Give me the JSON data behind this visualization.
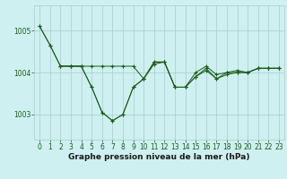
{
  "title": "Graphe pression niveau de la mer (hPa)",
  "background_color": "#cff0f0",
  "grid_color": "#aacccc",
  "line_color": "#1a5c1a",
  "ylim": [
    1002.4,
    1005.6
  ],
  "xlim": [
    -0.5,
    23.5
  ],
  "yticks": [
    1003,
    1004,
    1005
  ],
  "xticks": [
    0,
    1,
    2,
    3,
    4,
    5,
    6,
    7,
    8,
    9,
    10,
    11,
    12,
    13,
    14,
    15,
    16,
    17,
    18,
    19,
    20,
    21,
    22,
    23
  ],
  "series1_x": [
    0,
    1,
    2,
    3,
    4,
    5,
    6,
    7,
    8,
    9,
    10,
    11,
    12,
    13,
    14,
    15,
    16,
    17,
    18,
    19,
    20,
    21,
    22,
    23
  ],
  "series1": [
    1005.1,
    1004.65,
    1004.15,
    1004.15,
    1004.15,
    1004.15,
    1004.15,
    1004.15,
    1004.15,
    1004.15,
    1003.85,
    1004.25,
    1004.25,
    1003.65,
    1003.65,
    1004.0,
    1004.15,
    1003.95,
    1004.0,
    1004.0,
    1004.0,
    1004.1,
    1004.1,
    1004.1
  ],
  "series2_x": [
    0,
    1,
    2,
    3,
    4,
    5,
    6,
    7,
    8,
    9,
    10,
    11,
    12,
    13,
    14,
    15,
    16,
    17,
    18,
    19,
    20,
    21,
    22,
    23
  ],
  "series2": [
    1005.1,
    1004.65,
    1004.15,
    1004.15,
    1004.15,
    1003.65,
    1003.05,
    1002.85,
    1003.0,
    1003.65,
    1003.85,
    1004.2,
    1004.25,
    1003.65,
    1003.65,
    1003.9,
    1004.05,
    1003.85,
    1003.95,
    1004.0,
    1004.0,
    1004.1,
    1004.1,
    1004.1
  ],
  "series3_x": [
    2,
    3,
    4,
    5,
    6,
    7,
    8,
    9,
    10,
    11,
    12,
    13,
    14,
    15,
    16,
    17,
    18,
    19,
    20,
    21,
    22,
    23
  ],
  "series3": [
    1004.15,
    1004.15,
    1004.15,
    1003.65,
    1003.05,
    1002.85,
    1003.0,
    1003.65,
    1003.85,
    1004.25,
    1004.25,
    1003.65,
    1003.65,
    1003.9,
    1004.1,
    1003.85,
    1004.0,
    1004.05,
    1004.0,
    1004.1,
    1004.1,
    1004.1
  ],
  "title_fontsize": 6.5,
  "tick_fontsize": 5.5,
  "linewidth": 0.7,
  "markersize": 2.5
}
